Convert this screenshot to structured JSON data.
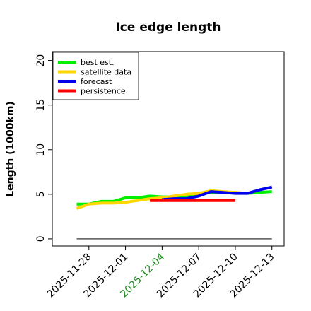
{
  "chart_data": {
    "type": "line",
    "title": "Ice edge length",
    "xlabel": "",
    "ylabel": "Length (1000km)",
    "ylim": [
      -0.8,
      21
    ],
    "xlim": [
      "2025-11-25",
      "2025-12-14"
    ],
    "yticks": [
      0,
      5,
      10,
      15,
      20
    ],
    "ytick_labels": [
      "0",
      "5",
      "10",
      "15",
      "20"
    ],
    "xticks": [
      "2025-11-28",
      "2025-12-01",
      "2025-12-04",
      "2025-12-07",
      "2025-12-10",
      "2025-12-13"
    ],
    "xtick_labels": [
      "2025-11-28",
      "2025-12-01",
      "2025-12-04",
      "2025-12-07",
      "2025-12-10",
      "2025-12-13"
    ],
    "highlight_tick": {
      "label": "2025-12-04",
      "color": "#1f8a1f"
    },
    "grid": false,
    "legend": "top-left",
    "series": [
      {
        "name": "best est.",
        "color": "#00ee00",
        "x": [
          "2025-11-27",
          "2025-11-28",
          "2025-11-29",
          "2025-11-30",
          "2025-12-01",
          "2025-12-02",
          "2025-12-03",
          "2025-12-04",
          "2025-12-05",
          "2025-12-06",
          "2025-12-07",
          "2025-12-08",
          "2025-12-09",
          "2025-12-10",
          "2025-12-11",
          "2025-12-12",
          "2025-12-13"
        ],
        "y": [
          3.9,
          3.9,
          4.2,
          4.2,
          4.6,
          4.6,
          4.8,
          4.7,
          4.7,
          4.8,
          5.0,
          5.2,
          5.2,
          5.2,
          5.1,
          5.2,
          5.3
        ]
      },
      {
        "name": "satellite data",
        "color": "#ffd700",
        "x": [
          "2025-11-27",
          "2025-11-28",
          "2025-11-29",
          "2025-11-30",
          "2025-12-01",
          "2025-12-02",
          "2025-12-03",
          "2025-12-04",
          "2025-12-05",
          "2025-12-06",
          "2025-12-07",
          "2025-12-08",
          "2025-12-09",
          "2025-12-10",
          "2025-12-11"
        ],
        "y": [
          3.4,
          3.9,
          4.0,
          4.0,
          4.1,
          4.3,
          4.5,
          4.6,
          4.8,
          5.0,
          5.1,
          5.4,
          5.3,
          5.2,
          5.1
        ]
      },
      {
        "name": "forecast",
        "color": "#0000ee",
        "x": [
          "2025-12-04",
          "2025-12-05",
          "2025-12-06",
          "2025-12-07",
          "2025-12-08",
          "2025-12-09",
          "2025-12-10",
          "2025-12-11",
          "2025-12-12",
          "2025-12-13"
        ],
        "y": [
          4.4,
          4.5,
          4.5,
          4.8,
          5.3,
          5.2,
          5.1,
          5.1,
          5.5,
          5.8
        ]
      },
      {
        "name": "persistence",
        "color": "#ff0000",
        "x": [
          "2025-12-03",
          "2025-12-10"
        ],
        "y": [
          4.3,
          4.3
        ]
      },
      {
        "name": "",
        "color": "#555555",
        "x": [
          "2025-11-27",
          "2025-12-13"
        ],
        "y": [
          0,
          0
        ]
      }
    ]
  }
}
